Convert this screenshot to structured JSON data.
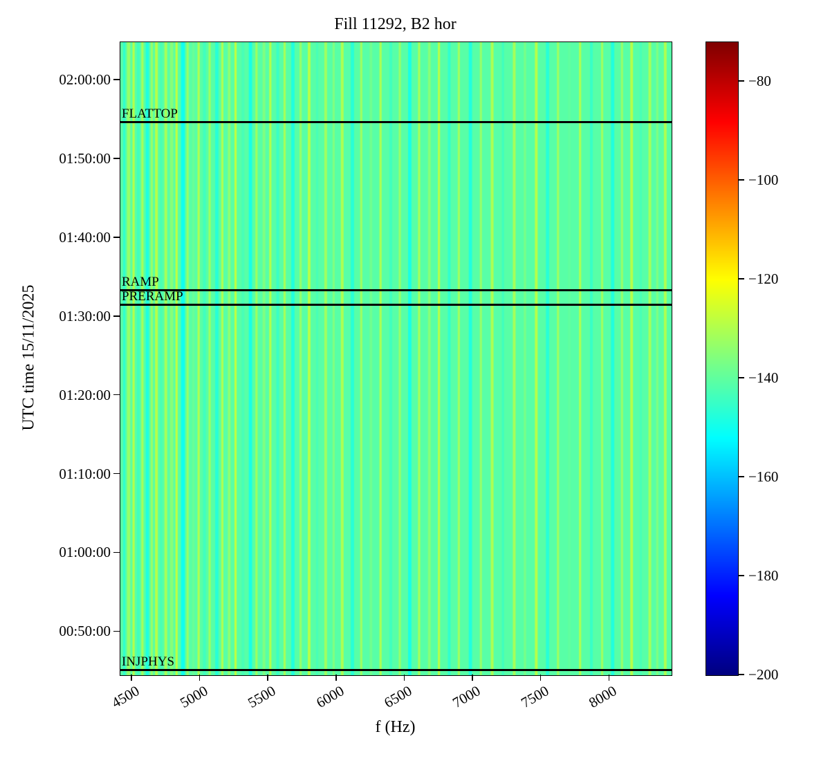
{
  "chart_data": {
    "type": "heatmap",
    "title": "Fill 11292, B2 hor",
    "xlabel": "f (Hz)",
    "ylabel": "UTC time 15/11/2025",
    "x_range_hz": [
      4414,
      8455
    ],
    "x_ticks": [
      "4500",
      "5000",
      "5500",
      "6000",
      "6500",
      "7000",
      "7500",
      "8000"
    ],
    "y_ticks": [
      "00:50:00",
      "01:00:00",
      "01:10:00",
      "01:20:00",
      "01:30:00",
      "01:40:00",
      "01:50:00",
      "02:00:00"
    ],
    "y_range_time": [
      "00:44:30",
      "02:04:50"
    ],
    "colorbar": {
      "cmap": "jet",
      "vmin": -200,
      "vmax": -72,
      "ticks": [
        -80,
        -100,
        -120,
        -140,
        -160,
        -180,
        -200
      ]
    },
    "background_value": -141,
    "annotations": [
      {
        "label": "FLATTOP",
        "time": "01:54:40"
      },
      {
        "label": "RAMP",
        "time": "01:33:20"
      },
      {
        "label": "PRERAMP",
        "time": "01:31:30"
      },
      {
        "label": "INJPHYS",
        "time": "00:45:10"
      }
    ],
    "stripes": [
      [
        0.005,
        0.004,
        -146
      ],
      [
        0.012,
        0.006,
        -133
      ],
      [
        0.022,
        0.004,
        -129
      ],
      [
        0.03,
        0.005,
        -144
      ],
      [
        0.038,
        0.004,
        -131
      ],
      [
        0.046,
        0.006,
        -148
      ],
      [
        0.055,
        0.004,
        -133
      ],
      [
        0.063,
        0.005,
        -129
      ],
      [
        0.072,
        0.004,
        -143
      ],
      [
        0.08,
        0.005,
        -131
      ],
      [
        0.09,
        0.006,
        -135
      ],
      [
        0.1,
        0.004,
        -128
      ],
      [
        0.11,
        0.007,
        -150
      ],
      [
        0.12,
        0.004,
        -133
      ],
      [
        0.13,
        0.005,
        -139
      ],
      [
        0.14,
        0.004,
        -130
      ],
      [
        0.15,
        0.005,
        -144
      ],
      [
        0.16,
        0.004,
        -132
      ],
      [
        0.172,
        0.006,
        -147
      ],
      [
        0.183,
        0.004,
        -130
      ],
      [
        0.195,
        0.005,
        -134
      ],
      [
        0.207,
        0.004,
        -128
      ],
      [
        0.22,
        0.005,
        -143
      ],
      [
        0.233,
        0.006,
        -149
      ],
      [
        0.245,
        0.004,
        -132
      ],
      [
        0.258,
        0.005,
        -136
      ],
      [
        0.27,
        0.004,
        -129
      ],
      [
        0.283,
        0.005,
        -145
      ],
      [
        0.296,
        0.004,
        -131
      ],
      [
        0.31,
        0.006,
        -148
      ],
      [
        0.325,
        0.004,
        -133
      ],
      [
        0.34,
        0.005,
        -129
      ],
      [
        0.355,
        0.004,
        -143
      ],
      [
        0.37,
        0.005,
        -132
      ],
      [
        0.385,
        0.004,
        -136
      ],
      [
        0.4,
        0.005,
        -130
      ],
      [
        0.418,
        0.006,
        -147
      ],
      [
        0.435,
        0.004,
        -132
      ],
      [
        0.452,
        0.005,
        -138
      ],
      [
        0.47,
        0.004,
        -130
      ],
      [
        0.488,
        0.005,
        -144
      ],
      [
        0.505,
        0.004,
        -133
      ],
      [
        0.522,
        0.006,
        -149
      ],
      [
        0.54,
        0.004,
        -131
      ],
      [
        0.558,
        0.005,
        -135
      ],
      [
        0.576,
        0.004,
        -129
      ],
      [
        0.594,
        0.005,
        -146
      ],
      [
        0.612,
        0.004,
        -132
      ],
      [
        0.632,
        0.006,
        -148
      ],
      [
        0.652,
        0.004,
        -133
      ],
      [
        0.672,
        0.005,
        -130
      ],
      [
        0.692,
        0.004,
        -144
      ],
      [
        0.712,
        0.005,
        -131
      ],
      [
        0.732,
        0.004,
        -137
      ],
      [
        0.752,
        0.005,
        -129
      ],
      [
        0.772,
        0.006,
        -147
      ],
      [
        0.792,
        0.004,
        -132
      ],
      [
        0.812,
        0.005,
        -140
      ],
      [
        0.832,
        0.004,
        -130
      ],
      [
        0.852,
        0.005,
        -145
      ],
      [
        0.872,
        0.004,
        -132
      ],
      [
        0.89,
        0.006,
        -148
      ],
      [
        0.908,
        0.004,
        -133
      ],
      [
        0.925,
        0.005,
        -129
      ],
      [
        0.942,
        0.004,
        -143
      ],
      [
        0.958,
        0.005,
        -131
      ],
      [
        0.972,
        0.004,
        -136
      ],
      [
        0.986,
        0.005,
        -130
      ]
    ]
  }
}
